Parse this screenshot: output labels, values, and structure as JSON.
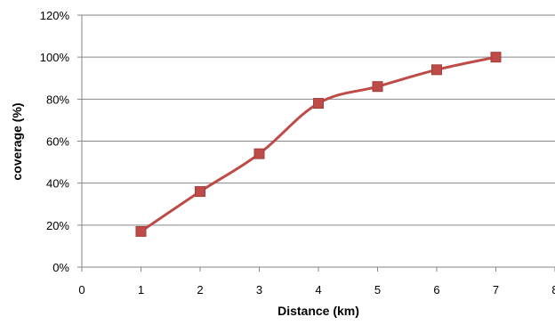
{
  "chart_data": {
    "type": "line",
    "title": "",
    "xlabel": "Distance (km)",
    "ylabel": "coverage (%)",
    "xlim": [
      0,
      8
    ],
    "ylim": [
      0,
      120
    ],
    "x_ticks": [
      "0",
      "1",
      "2",
      "3",
      "4",
      "5",
      "6",
      "7",
      "8"
    ],
    "y_ticks": [
      "0%",
      "20%",
      "40%",
      "60%",
      "80%",
      "100%",
      "120%"
    ],
    "grid": "horizontal",
    "legend": "none",
    "series": [
      {
        "x": [
          1,
          2,
          3,
          4,
          5,
          6,
          7
        ],
        "values": [
          17,
          36,
          54,
          78,
          86,
          94,
          100
        ],
        "color": "#BE4B48",
        "marker": "square",
        "smooth": true
      }
    ]
  }
}
